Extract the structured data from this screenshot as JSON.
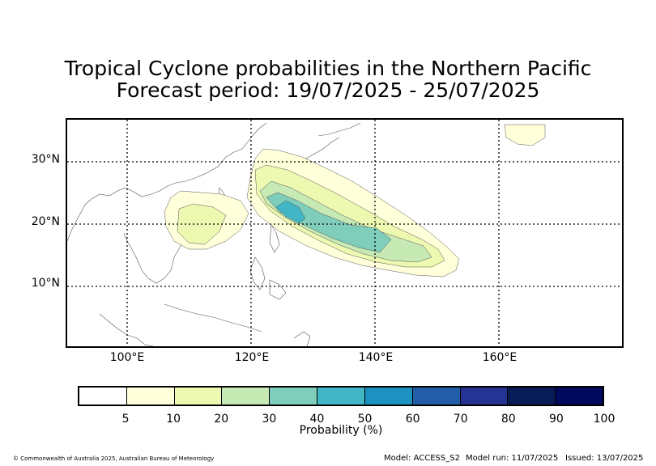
{
  "title": {
    "line1": "Tropical Cyclone probabilities in the Northern Pacific",
    "line2": "Forecast period: 19/07/2025 - 25/07/2025"
  },
  "map": {
    "lon_range": [
      90,
      180
    ],
    "lat_range": [
      0,
      37
    ],
    "lat_labels": [
      "30°N",
      "20°N",
      "10°N"
    ],
    "lon_labels": [
      "100°E",
      "120°E",
      "140°E",
      "160°E"
    ],
    "gridlines": "dotted",
    "contour_levels": [
      5,
      10,
      20,
      30,
      40
    ]
  },
  "colorbar": {
    "ticks": [
      "5",
      "10",
      "20",
      "30",
      "40",
      "50",
      "60",
      "70",
      "80",
      "90",
      "100"
    ],
    "colors": [
      "#ffffff",
      "#ffffd9",
      "#edf8b1",
      "#c7e9b4",
      "#7fcdbb",
      "#41b6c4",
      "#1d91c0",
      "#225ea8",
      "#253494",
      "#081d58",
      "#000a5c"
    ],
    "label": "Probability (%)"
  },
  "footer": {
    "copyright": "© Commonwealth of Australia 2025, Australian Bureau of Meteorology",
    "model": "Model: ACCESS_S2",
    "model_run": "Model run: 11/07/2025",
    "issued": "Issued: 13/07/2025"
  }
}
